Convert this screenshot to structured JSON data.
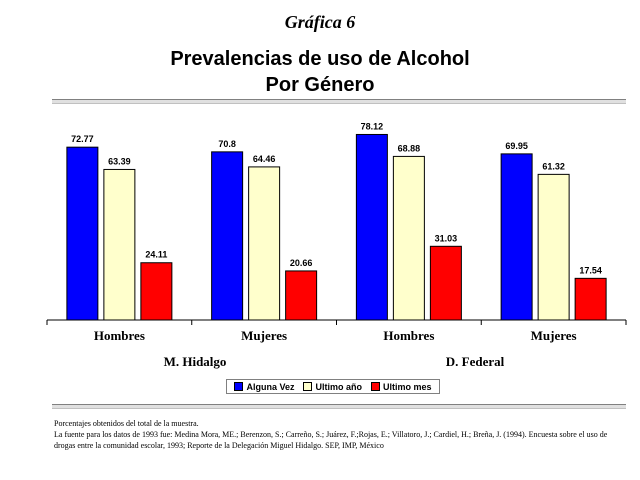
{
  "supertitle": "Gráfica 6",
  "title_line1": "Prevalencias de uso de Alcohol",
  "title_line2": "Por Género",
  "chart_data": {
    "type": "bar",
    "title": "Prevalencias de uso de Alcohol Por Género",
    "categories": [
      "Hombres",
      "Mujeres",
      "Hombres",
      "Mujeres"
    ],
    "groups": [
      "M. Hidalgo",
      "D. Federal"
    ],
    "series": [
      {
        "name": "Alguna Vez",
        "color": "#0000ff",
        "values": [
          72.77,
          70.8,
          78.12,
          69.95
        ]
      },
      {
        "name": "Ultimo año",
        "color": "#ffffcc",
        "values": [
          63.39,
          64.46,
          68.88,
          61.32
        ]
      },
      {
        "name": "Ultimo mes",
        "color": "#ff0000",
        "values": [
          24.11,
          20.66,
          31.03,
          17.54
        ]
      }
    ],
    "ylim": [
      0,
      80
    ],
    "grid": false,
    "legend_position": "bottom"
  },
  "footnotes": [
    "Porcentajes obtenidos del total de la muestra.",
    "La fuente para los datos de 1993 fue: Medina Mora, ME.; Berenzon, S.; Carreño, S.; Juárez, F.;Rojas, E.; Villatoro, J.; Cardiel, H.; Breña, J. (1994). Encuesta sobre el uso de drogas entre la comunidad escolar, 1993; Reporte de la Delegación Miguel Hidalgo. SEP, IMP, México"
  ]
}
